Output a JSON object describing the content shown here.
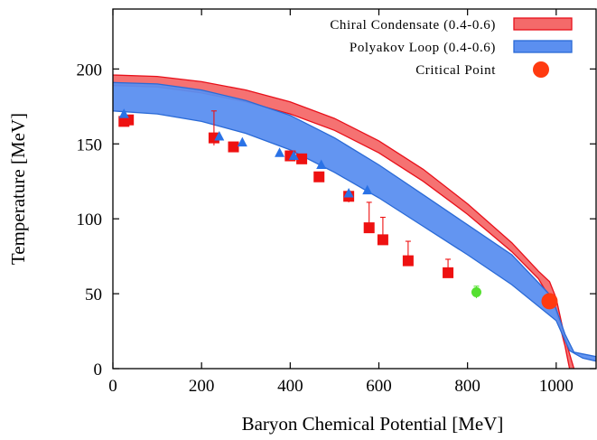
{
  "chart_data": {
    "type": "scatter",
    "title": "",
    "xlabel": "Baryon Chemical Potential  [MeV]",
    "ylabel": "Temperature  [MeV]",
    "xlim": [
      0,
      1090
    ],
    "ylim": [
      0,
      240
    ],
    "xticks": [
      0,
      200,
      400,
      600,
      800,
      1000
    ],
    "yticks": [
      0,
      50,
      100,
      150,
      200
    ],
    "grid": false,
    "legend_position": "top-right",
    "colors": {
      "chiral_fill": "#f46a6a",
      "chiral_edge": "#e8101a",
      "polyakov_fill": "#5b8ff0",
      "polyakov_edge": "#2a6ad6",
      "square": "#ee1111",
      "triangle": "#2a72e6",
      "critical_point": "#ff3a10",
      "green_point": "#55e030"
    },
    "legend": [
      {
        "label": "Chiral Condensate (0.4-0.6)",
        "kind": "band",
        "series": "chiral"
      },
      {
        "label": "Polyakov Loop (0.4-0.6)",
        "kind": "band",
        "series": "polyakov"
      },
      {
        "label": "Critical Point",
        "kind": "dot",
        "series": "critical"
      }
    ],
    "bands": [
      {
        "id": "chiral",
        "name": "Chiral Condensate (0.4-0.6)",
        "upper": [
          [
            0,
            196
          ],
          [
            100,
            195
          ],
          [
            200,
            191.5
          ],
          [
            300,
            186
          ],
          [
            400,
            178
          ],
          [
            500,
            167
          ],
          [
            600,
            152
          ],
          [
            700,
            133
          ],
          [
            800,
            110
          ],
          [
            900,
            84
          ],
          [
            960,
            65
          ],
          [
            985,
            58
          ],
          [
            1000,
            47
          ],
          [
            1020,
            20
          ],
          [
            1040,
            0
          ]
        ],
        "lower": [
          [
            0,
            189
          ],
          [
            100,
            188
          ],
          [
            200,
            184
          ],
          [
            300,
            178
          ],
          [
            400,
            170
          ],
          [
            500,
            159
          ],
          [
            600,
            144
          ],
          [
            700,
            125
          ],
          [
            800,
            103
          ],
          [
            900,
            78
          ],
          [
            960,
            60
          ],
          [
            980,
            50
          ],
          [
            1000,
            38
          ],
          [
            1020,
            15
          ],
          [
            1030,
            0
          ]
        ]
      },
      {
        "id": "polyakov",
        "name": "Polyakov Loop (0.4-0.6)",
        "upper": [
          [
            0,
            191
          ],
          [
            100,
            190
          ],
          [
            200,
            186
          ],
          [
            300,
            179
          ],
          [
            400,
            169
          ],
          [
            500,
            154
          ],
          [
            600,
            136
          ],
          [
            700,
            116
          ],
          [
            800,
            96
          ],
          [
            900,
            76
          ],
          [
            990,
            48
          ],
          [
            1020,
            23
          ],
          [
            1040,
            11
          ],
          [
            1090,
            8
          ]
        ],
        "lower": [
          [
            0,
            172
          ],
          [
            100,
            170
          ],
          [
            200,
            165
          ],
          [
            300,
            157
          ],
          [
            400,
            146
          ],
          [
            500,
            131
          ],
          [
            600,
            114
          ],
          [
            700,
            95
          ],
          [
            800,
            76
          ],
          [
            900,
            56
          ],
          [
            1000,
            32
          ],
          [
            1030,
            12
          ],
          [
            1060,
            7
          ],
          [
            1090,
            5
          ]
        ]
      }
    ],
    "series": [
      {
        "id": "squares",
        "marker": "square",
        "points": [
          {
            "x": 25,
            "y": 165,
            "err_low": 3,
            "err_high": 3
          },
          {
            "x": 35,
            "y": 166,
            "err_low": 2,
            "err_high": 2
          },
          {
            "x": 228,
            "y": 154,
            "err_low": 5,
            "err_high": 18
          },
          {
            "x": 272,
            "y": 148,
            "err_low": 3,
            "err_high": 3
          },
          {
            "x": 400,
            "y": 142,
            "err_low": 2,
            "err_high": 3
          },
          {
            "x": 426,
            "y": 140,
            "err_low": 2,
            "err_high": 2
          },
          {
            "x": 465,
            "y": 128,
            "err_low": 2,
            "err_high": 2
          },
          {
            "x": 532,
            "y": 115,
            "err_low": 4,
            "err_high": 3
          },
          {
            "x": 578,
            "y": 94,
            "err_low": 3,
            "err_high": 17
          },
          {
            "x": 609,
            "y": 86,
            "err_low": 2,
            "err_high": 15
          },
          {
            "x": 666,
            "y": 72,
            "err_low": 2,
            "err_high": 13
          },
          {
            "x": 756,
            "y": 64,
            "err_low": 2,
            "err_high": 9
          }
        ]
      },
      {
        "id": "triangles",
        "marker": "triangle",
        "points": [
          {
            "x": 25,
            "y": 170
          },
          {
            "x": 240,
            "y": 155
          },
          {
            "x": 292,
            "y": 151
          },
          {
            "x": 376,
            "y": 144
          },
          {
            "x": 408,
            "y": 142
          },
          {
            "x": 470,
            "y": 136
          },
          {
            "x": 532,
            "y": 117
          },
          {
            "x": 574,
            "y": 119
          }
        ]
      },
      {
        "id": "green",
        "marker": "circle-small",
        "points": [
          {
            "x": 820,
            "y": 51,
            "err_low": 4,
            "err_high": 4
          }
        ]
      },
      {
        "id": "critical",
        "name": "Critical Point",
        "marker": "circle-large",
        "points": [
          {
            "x": 985,
            "y": 45
          }
        ]
      }
    ]
  }
}
